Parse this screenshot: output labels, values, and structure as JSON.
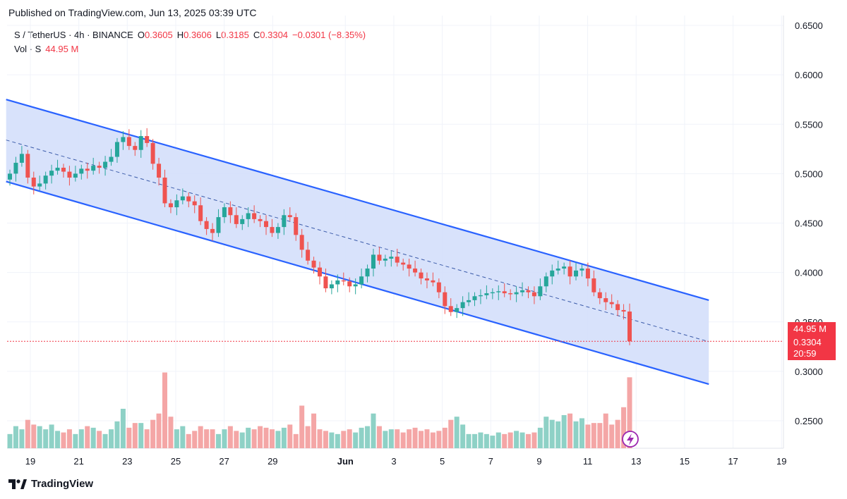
{
  "published": "Published on TradingView.com, Jun 13, 2025 03:39 UTC",
  "legend": {
    "symbol": "S / TetherUS · 4h · BINANCE",
    "o_label": "O",
    "o_value": "0.3605",
    "h_label": "H",
    "h_value": "0.3606",
    "l_label": "L",
    "l_value": "0.3185",
    "c_label": "C",
    "c_value": "0.3304",
    "change": "−0.0301 (−8.35%)",
    "vol_label": "Vol · S",
    "vol_value": "44.95 M"
  },
  "price_tags": {
    "volume": "44.95 M",
    "price": "0.3304",
    "countdown": "20:59"
  },
  "footer": {
    "brand": "TradingView",
    "logo_icon": "tradingview-logo"
  },
  "colors": {
    "up": "#26A69A",
    "down": "#EF5350",
    "up_vol": "#8ED1C6",
    "down_vol": "#F4A6A6",
    "channel_line": "#2962FF",
    "channel_fill": "#D4DFFB",
    "price_line": "#F23645"
  },
  "chart_data": {
    "type": "candlestick",
    "symbol": "S / TetherUS",
    "interval": "4h",
    "exchange": "BINANCE",
    "ylim": [
      0.22,
      0.66
    ],
    "y_ticks": [
      "0.6500",
      "0.6000",
      "0.5500",
      "0.5000",
      "0.4500",
      "0.4000",
      "0.3500",
      "0.3000",
      "0.2500"
    ],
    "y_tick_values": [
      0.65,
      0.6,
      0.55,
      0.5,
      0.45,
      0.4,
      0.35,
      0.3,
      0.25
    ],
    "x_ticks": [
      "19",
      "21",
      "23",
      "25",
      "27",
      "29",
      "Jun",
      "3",
      "5",
      "7",
      "9",
      "11",
      "13",
      "15",
      "17",
      "19"
    ],
    "x_tick_days": [
      0,
      2,
      4,
      6,
      8,
      10,
      13,
      15,
      17,
      19,
      21,
      23,
      25,
      27,
      29,
      31
    ],
    "last_price": 0.3304,
    "channel": {
      "upper": [
        [
          -1,
          0.575
        ],
        [
          28,
          0.372
        ]
      ],
      "lower": [
        [
          -1,
          0.492
        ],
        [
          28,
          0.287
        ]
      ],
      "mid": [
        [
          -1,
          0.534
        ],
        [
          28,
          0.33
        ]
      ]
    },
    "closes": [
      0.5,
      0.511,
      0.52,
      0.496,
      0.487,
      0.49,
      0.498,
      0.503,
      0.506,
      0.502,
      0.496,
      0.5,
      0.505,
      0.503,
      0.508,
      0.506,
      0.512,
      0.517,
      0.532,
      0.537,
      0.528,
      0.524,
      0.538,
      0.531,
      0.51,
      0.496,
      0.47,
      0.466,
      0.473,
      0.477,
      0.472,
      0.468,
      0.452,
      0.444,
      0.44,
      0.456,
      0.466,
      0.458,
      0.449,
      0.454,
      0.46,
      0.454,
      0.452,
      0.446,
      0.44,
      0.446,
      0.458,
      0.456,
      0.438,
      0.423,
      0.412,
      0.405,
      0.396,
      0.384,
      0.388,
      0.392,
      0.391,
      0.386,
      0.388,
      0.396,
      0.404,
      0.418,
      0.412,
      0.414,
      0.416,
      0.41,
      0.408,
      0.404,
      0.4,
      0.394,
      0.392,
      0.39,
      0.38,
      0.366,
      0.36,
      0.364,
      0.37,
      0.372,
      0.376,
      0.377,
      0.379,
      0.38,
      0.381,
      0.379,
      0.378,
      0.38,
      0.382,
      0.38,
      0.376,
      0.386,
      0.396,
      0.402,
      0.404,
      0.406,
      0.396,
      0.402,
      0.404,
      0.394,
      0.38,
      0.374,
      0.37,
      0.368,
      0.362,
      0.3605,
      0.3304
    ],
    "volumes_m": [
      9,
      14,
      12,
      18,
      15,
      14,
      12,
      15,
      11,
      10,
      12,
      9,
      12,
      14,
      13,
      11,
      9,
      12,
      17,
      25,
      13,
      16,
      16,
      12,
      18,
      22,
      48,
      20,
      12,
      14,
      9,
      11,
      14,
      12,
      12,
      9,
      12,
      14,
      11,
      10,
      13,
      12,
      14,
      13,
      12,
      11,
      13,
      15,
      9,
      27,
      14,
      22,
      12,
      11,
      10,
      9,
      11,
      12,
      10,
      13,
      14,
      22,
      14,
      11,
      12,
      12,
      10,
      12,
      13,
      11,
      12,
      10,
      11,
      13,
      18,
      20,
      15,
      9,
      9,
      10,
      9,
      8,
      10,
      9,
      10,
      11,
      10,
      9,
      10,
      13,
      20,
      18,
      17,
      21,
      22,
      17,
      19,
      15,
      16,
      16,
      22,
      15,
      18,
      26,
      44.95
    ]
  }
}
